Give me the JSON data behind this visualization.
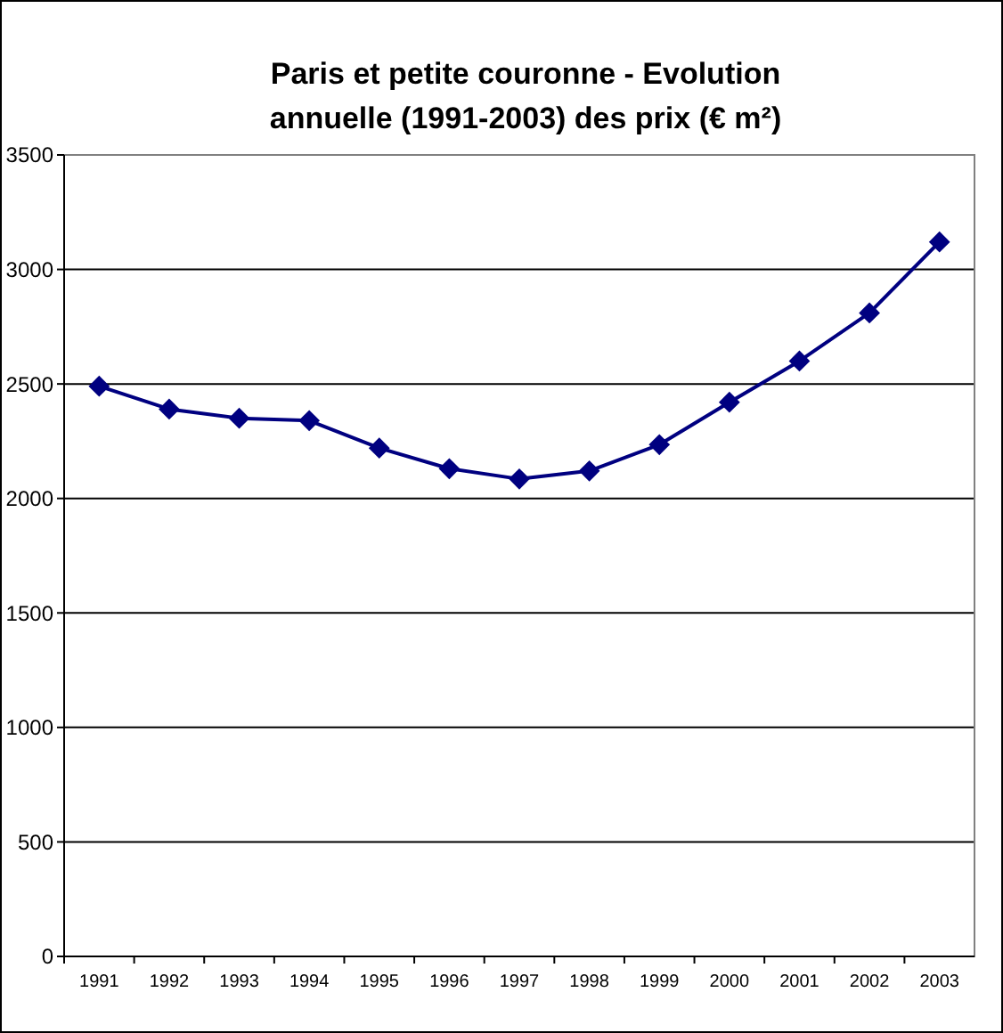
{
  "chart_data": {
    "type": "line",
    "title": "Paris et petite couronne - Evolution annuelle (1991-2003) des prix (€ m²)",
    "categories": [
      "1991",
      "1992",
      "1993",
      "1994",
      "1995",
      "1996",
      "1997",
      "1998",
      "1999",
      "2000",
      "2001",
      "2002",
      "2003"
    ],
    "series": [
      {
        "color": "#000080",
        "values": [
          2490,
          2390,
          2350,
          2340,
          2220,
          2130,
          2085,
          2120,
          2235,
          2420,
          2600,
          2810,
          3120
        ]
      }
    ],
    "ylim": [
      0,
      3500
    ],
    "yticks": [
      0,
      500,
      1000,
      1500,
      2000,
      2500,
      3000,
      3500
    ],
    "grid": "y",
    "marker": "diamond",
    "line_style": "solid"
  }
}
